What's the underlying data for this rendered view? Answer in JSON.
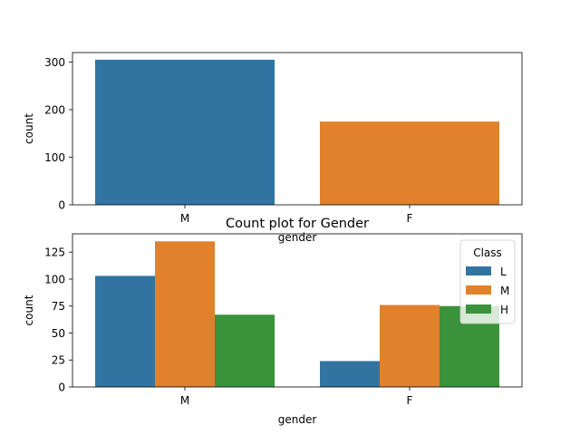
{
  "chart_data": [
    {
      "type": "bar",
      "title": "",
      "xlabel": "gender",
      "ylabel": "count",
      "categories": [
        "M",
        "F"
      ],
      "values": [
        305,
        175
      ],
      "colors": [
        "#3274a1",
        "#e1812c"
      ],
      "ylim": [
        0,
        320
      ],
      "yticks": [
        0,
        100,
        200,
        300
      ],
      "grid": false
    },
    {
      "type": "bar",
      "title": "Count plot for Gender",
      "xlabel": "gender",
      "ylabel": "count",
      "categories": [
        "M",
        "F"
      ],
      "series": [
        {
          "name": "L",
          "values": [
            103,
            24
          ],
          "color": "#3274a1"
        },
        {
          "name": "M",
          "values": [
            135,
            76
          ],
          "color": "#e1812c"
        },
        {
          "name": "H",
          "values": [
            67,
            75
          ],
          "color": "#3a923a"
        }
      ],
      "legend": {
        "title": "Class",
        "position": "top-right"
      },
      "ylim": [
        0,
        142
      ],
      "yticks": [
        0,
        25,
        50,
        75,
        100,
        125
      ],
      "grid": false
    }
  ]
}
